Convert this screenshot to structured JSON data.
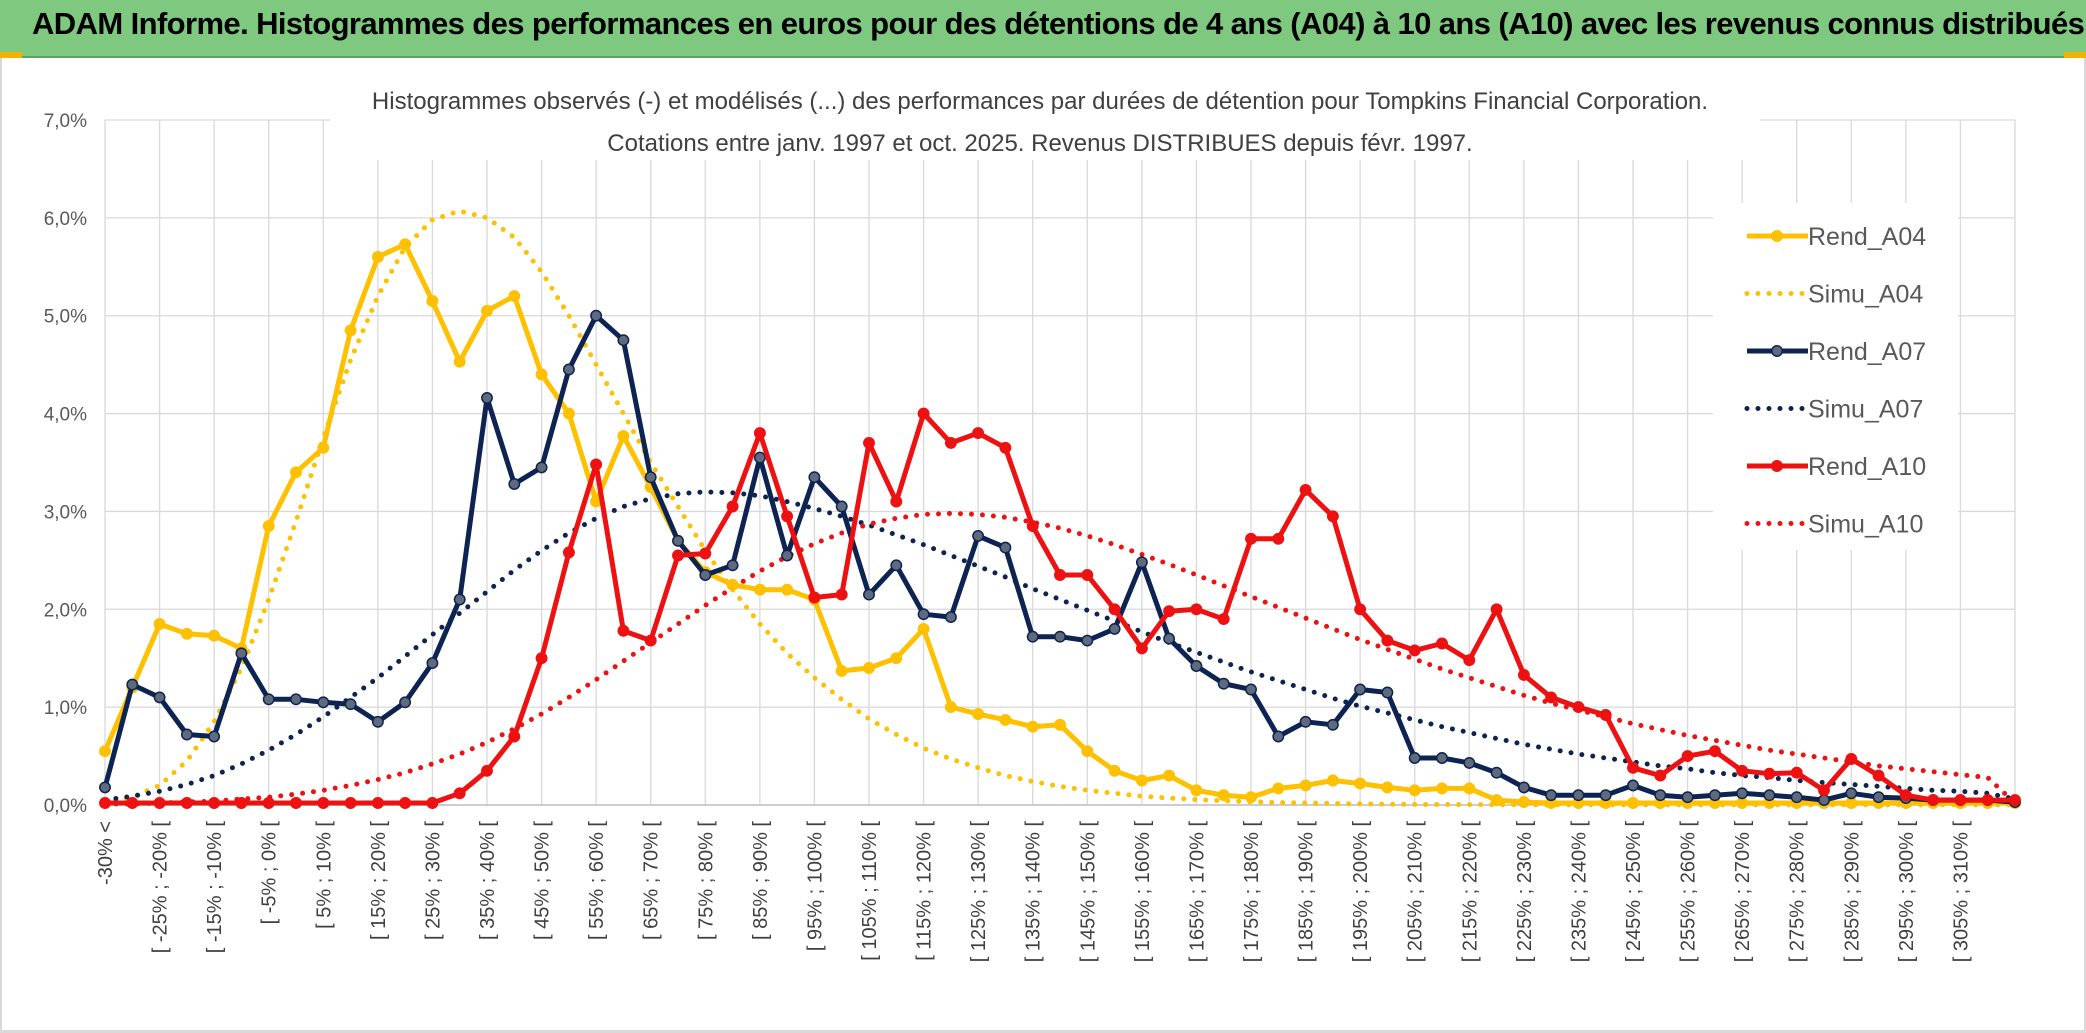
{
  "banner": {
    "title": "ADAM Informe. Histogrammes des performances en euros pour des détentions de 4 ans (A04) à 10 ans (A10) avec les revenus connus distribués"
  },
  "chart_data": {
    "type": "line",
    "title": "Histogrammes observés (-) et modélisés (...) des performances par durées de détention pour Tompkins Financial Corporation.",
    "subtitle": "Cotations entre janv. 1997 et oct. 2025. Revenus DISTRIBUES depuis févr. 1997.",
    "xlabel": "",
    "ylabel": "",
    "ylim": [
      0,
      7
    ],
    "y_unit": "%",
    "yticks": [
      "0,0%",
      "1,0%",
      "2,0%",
      "3,0%",
      "4,0%",
      "5,0%",
      "6,0%",
      "7,0%"
    ],
    "grid": true,
    "legend_position": "right",
    "categories": [
      "-30% <",
      "[ -30% ; -25% [",
      "[ -25% ; -20% [",
      "[ -20% ; -15% [",
      "[ -15% ; -10% [",
      "[ -10% ; -5% [",
      "[ -5% ; 0% [",
      "[ 0% ; 5% [",
      "[ 5% ; 10% [",
      "[ 10% ; 15% [",
      "[ 15% ; 20% [",
      "[ 20% ; 25% [",
      "[ 25% ; 30% [",
      "[ 30% ; 35% [",
      "[ 35% ; 40% [",
      "[ 40% ; 45% [",
      "[ 45% ; 50% [",
      "[ 50% ; 55% [",
      "[ 55% ; 60% [",
      "[ 60% ; 65% [",
      "[ 65% ; 70% [",
      "[ 70% ; 75% [",
      "[ 75% ; 80% [",
      "[ 80% ; 85% [",
      "[ 85% ; 90% [",
      "[ 90% ; 95% [",
      "[ 95% ; 100% [",
      "[ 100% ; 105% [",
      "[ 105% ; 110% [",
      "[ 110% ; 115% [",
      "[ 115% ; 120% [",
      "[ 120% ; 125% [",
      "[ 125% ; 130% [",
      "[ 130% ; 135% [",
      "[ 135% ; 140% [",
      "[ 140% ; 145% [",
      "[ 145% ; 150% [",
      "[ 150% ; 155% [",
      "[ 155% ; 160% [",
      "[ 160% ; 165% [",
      "[ 165% ; 170% [",
      "[ 170% ; 175% [",
      "[ 175% ; 180% [",
      "[ 180% ; 185% [",
      "[ 185% ; 190% [",
      "[ 190% ; 195% [",
      "[ 195% ; 200% [",
      "[ 200% ; 205% [",
      "[ 205% ; 210% [",
      "[ 210% ; 215% [",
      "[ 215% ; 220% [",
      "[ 220% ; 225% [",
      "[ 225% ; 230% [",
      "[ 230% ; 235% [",
      "[ 235% ; 240% [",
      "[ 240% ; 245% [",
      "[ 245% ; 250% [",
      "[ 250% ; 255% [",
      "[ 255% ; 260% [",
      "[ 260% ; 265% [",
      "[ 265% ; 270% [",
      "[ 270% ; 275% [",
      "[ 275% ; 280% [",
      "[ 280% ; 285% [",
      "[ 285% ; 290% [",
      "[ 290% ; 295% [",
      "[ 295% ; 300% [",
      "[ 300% ; 305% [",
      "[ 305% ; 310% [",
      "[ 310% ; 315% [",
      "> 315%"
    ],
    "xtick_labels": [
      "-30% <",
      "[ -25% ; -20% [",
      "[ -15% ; -10% [",
      "[ -5% ; 0% [",
      "[ 5% ; 10% [",
      "[ 15% ; 20% [",
      "[ 25% ; 30% [",
      "[ 35% ; 40% [",
      "[ 45% ; 50% [",
      "[ 55% ; 60% [",
      "[ 65% ; 70% [",
      "[ 75% ; 80% [",
      "[ 85% ; 90% [",
      "[ 95% ; 100% [",
      "[ 105% ; 110% [",
      "[ 115% ; 120% [",
      "[ 125% ; 130% [",
      "[ 135% ; 140% [",
      "[ 145% ; 150% [",
      "[ 155% ; 160% [",
      "[ 165% ; 170% [",
      "[ 175% ; 180% [",
      "[ 185% ; 190% [",
      "[ 195% ; 200% [",
      "[ 205% ; 210% [",
      "[ 215% ; 220% [",
      "[ 225% ; 230% [",
      "[ 235% ; 240% [",
      "[ 245% ; 250% [",
      "[ 255% ; 260% [",
      "[ 265% ; 270% [",
      "[ 275% ; 280% [",
      "[ 285% ; 290% [",
      "[ 295% ; 300% [",
      "[ 305% ; 310% ["
    ],
    "series": [
      {
        "name": "Rend_A04",
        "style": "solid",
        "color": "#ffc000",
        "markers": true,
        "values": [
          0.55,
          1.2,
          1.85,
          1.75,
          1.73,
          1.6,
          2.85,
          3.4,
          3.65,
          4.85,
          5.6,
          5.73,
          5.15,
          4.53,
          5.05,
          5.2,
          4.4,
          4.0,
          3.1,
          3.77,
          3.25,
          2.7,
          2.38,
          2.25,
          2.2,
          2.2,
          2.1,
          1.37,
          1.4,
          1.5,
          1.8,
          1.0,
          0.93,
          0.87,
          0.8,
          0.82,
          0.55,
          0.35,
          0.25,
          0.3,
          0.15,
          0.1,
          0.08,
          0.17,
          0.2,
          0.25,
          0.22,
          0.18,
          0.15,
          0.17,
          0.17,
          0.05,
          0.03,
          0.02,
          0.02,
          0.02,
          0.02,
          0.02,
          0.02,
          0.02,
          0.02,
          0.02,
          0.02,
          0.02,
          0.02,
          0.02,
          0.02,
          0.02,
          0.02,
          0.02,
          0.02
        ]
      },
      {
        "name": "Simu_A04",
        "style": "dotted",
        "color": "#ffc000",
        "markers": false,
        "values": [
          0.02,
          0.08,
          0.2,
          0.45,
          0.85,
          1.4,
          2.1,
          2.9,
          3.75,
          4.55,
          5.2,
          5.7,
          5.98,
          6.07,
          6.0,
          5.8,
          5.45,
          5.0,
          4.5,
          4.0,
          3.5,
          3.05,
          2.6,
          2.2,
          1.85,
          1.55,
          1.3,
          1.08,
          0.88,
          0.72,
          0.58,
          0.47,
          0.38,
          0.3,
          0.24,
          0.19,
          0.15,
          0.12,
          0.09,
          0.07,
          0.055,
          0.043,
          0.033,
          0.026,
          0.02,
          0.015,
          0.011,
          0.008,
          0.006,
          0.005,
          0.004,
          0.003,
          0.002,
          0.002,
          0.001,
          0.001,
          0.001,
          0.001,
          0.001,
          0.001,
          0.001,
          0.001,
          0.001,
          0.001,
          0.001,
          0.001,
          0.001,
          0.001,
          0.001,
          0.001,
          0.001
        ]
      },
      {
        "name": "Rend_A07",
        "style": "solid",
        "color": "#0d2352",
        "markers": true,
        "values": [
          0.18,
          1.23,
          1.1,
          0.72,
          0.7,
          1.55,
          1.08,
          1.08,
          1.05,
          1.03,
          0.85,
          1.05,
          1.45,
          2.1,
          4.16,
          3.28,
          3.45,
          4.45,
          5.0,
          4.75,
          3.35,
          2.7,
          2.35,
          2.45,
          3.55,
          2.55,
          3.35,
          3.05,
          2.15,
          2.45,
          1.95,
          1.92,
          2.75,
          2.63,
          1.72,
          1.72,
          1.68,
          1.8,
          2.48,
          1.7,
          1.42,
          1.24,
          1.18,
          0.7,
          0.85,
          0.82,
          1.18,
          1.15,
          0.48,
          0.48,
          0.43,
          0.33,
          0.18,
          0.1,
          0.1,
          0.1,
          0.2,
          0.1,
          0.08,
          0.1,
          0.12,
          0.1,
          0.08,
          0.05,
          0.12,
          0.08,
          0.07,
          0.05,
          0.05,
          0.05,
          0.03
        ]
      },
      {
        "name": "Simu_A07",
        "style": "dotted",
        "color": "#0d2352",
        "markers": false,
        "values": [
          0.05,
          0.09,
          0.14,
          0.21,
          0.3,
          0.42,
          0.56,
          0.72,
          0.9,
          1.1,
          1.3,
          1.52,
          1.74,
          1.96,
          2.18,
          2.4,
          2.6,
          2.78,
          2.93,
          3.05,
          3.13,
          3.18,
          3.2,
          3.19,
          3.16,
          3.1,
          3.03,
          2.95,
          2.86,
          2.76,
          2.66,
          2.55,
          2.44,
          2.33,
          2.21,
          2.1,
          1.99,
          1.88,
          1.77,
          1.66,
          1.56,
          1.46,
          1.36,
          1.27,
          1.18,
          1.09,
          1.01,
          0.94,
          0.87,
          0.8,
          0.74,
          0.68,
          0.62,
          0.57,
          0.52,
          0.48,
          0.44,
          0.4,
          0.37,
          0.33,
          0.3,
          0.28,
          0.25,
          0.23,
          0.21,
          0.19,
          0.17,
          0.15,
          0.14,
          0.12,
          0.06
        ]
      },
      {
        "name": "Rend_A10",
        "style": "solid",
        "color": "#ee1111",
        "markers": true,
        "values": [
          0.02,
          0.02,
          0.02,
          0.02,
          0.02,
          0.02,
          0.02,
          0.02,
          0.02,
          0.02,
          0.02,
          0.02,
          0.02,
          0.12,
          0.35,
          0.7,
          1.5,
          2.58,
          3.48,
          1.78,
          1.68,
          2.55,
          2.57,
          3.05,
          3.8,
          2.95,
          2.12,
          2.15,
          3.7,
          3.1,
          4.0,
          3.7,
          3.8,
          3.65,
          2.85,
          2.35,
          2.35,
          2.0,
          1.6,
          1.98,
          2.0,
          1.9,
          2.72,
          2.72,
          3.22,
          2.95,
          2.0,
          1.68,
          1.58,
          1.65,
          1.48,
          2.0,
          1.33,
          1.1,
          1.0,
          0.92,
          0.38,
          0.3,
          0.5,
          0.55,
          0.35,
          0.32,
          0.33,
          0.15,
          0.47,
          0.3,
          0.1,
          0.05,
          0.05,
          0.05,
          0.05
        ]
      },
      {
        "name": "Simu_A10",
        "style": "dotted",
        "color": "#ee1111",
        "markers": false,
        "values": [
          0.01,
          0.01,
          0.02,
          0.03,
          0.04,
          0.06,
          0.08,
          0.11,
          0.15,
          0.2,
          0.26,
          0.33,
          0.42,
          0.52,
          0.64,
          0.78,
          0.93,
          1.1,
          1.28,
          1.47,
          1.66,
          1.85,
          2.04,
          2.22,
          2.39,
          2.54,
          2.67,
          2.78,
          2.87,
          2.93,
          2.97,
          2.98,
          2.97,
          2.94,
          2.89,
          2.83,
          2.75,
          2.66,
          2.56,
          2.46,
          2.35,
          2.24,
          2.13,
          2.02,
          1.91,
          1.8,
          1.69,
          1.59,
          1.49,
          1.39,
          1.3,
          1.21,
          1.12,
          1.04,
          0.97,
          0.9,
          0.83,
          0.77,
          0.71,
          0.66,
          0.61,
          0.56,
          0.52,
          0.48,
          0.44,
          0.4,
          0.37,
          0.34,
          0.31,
          0.28,
          0.02
        ]
      }
    ]
  }
}
